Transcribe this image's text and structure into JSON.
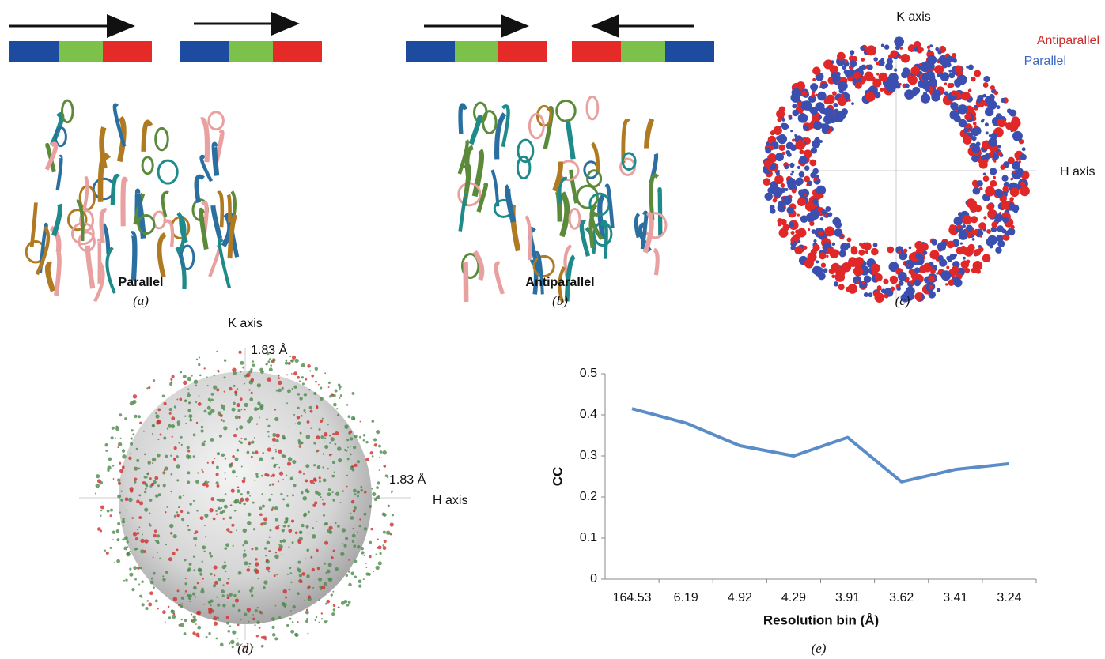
{
  "panels": {
    "a": {
      "label": "Parallel",
      "letter": "(a)"
    },
    "b": {
      "label": "Antiparallel",
      "letter": "(b)"
    },
    "c": {
      "k_axis": "K axis",
      "h_axis": "H axis",
      "legend_antiparallel": "Antiparallel",
      "legend_parallel": "Parallel",
      "letter": "(c)"
    },
    "d": {
      "k_axis": "K axis",
      "h_axis": "H axis",
      "k_resolution": "1.83 Å",
      "h_resolution": "1.83 Å",
      "letter": "(d)"
    },
    "e": {
      "letter": "(e)"
    }
  },
  "chart_data": {
    "type": "line",
    "x_label": "Resolution bin (Å)",
    "y_label": "CC",
    "categories": [
      "164.53",
      "6.19",
      "4.92",
      "4.29",
      "3.91",
      "3.62",
      "3.41",
      "3.24"
    ],
    "series": [
      {
        "name": "CC",
        "color": "#5a8dc8",
        "values": [
          0.415,
          0.38,
          0.325,
          0.3,
          0.345,
          0.237,
          0.267,
          0.281
        ]
      }
    ],
    "ylim": [
      0,
      0.5
    ],
    "yticks": [
      0,
      0.1,
      0.2,
      0.3,
      0.4,
      0.5
    ],
    "grid": false
  }
}
